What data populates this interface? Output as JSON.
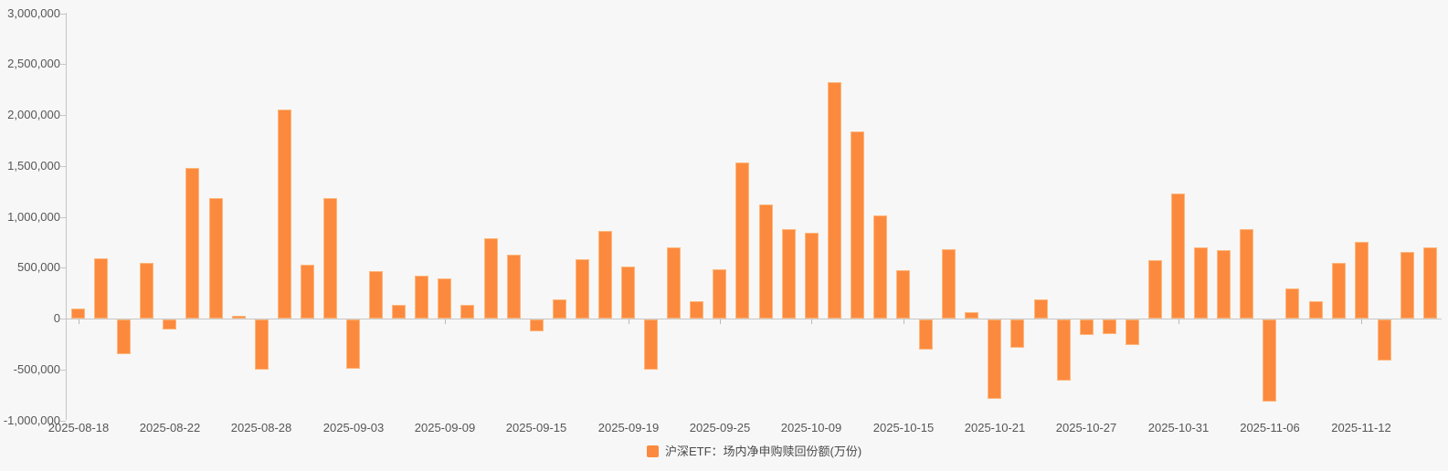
{
  "chart_data": {
    "type": "bar",
    "legend": {
      "label": "沪深ETF：场内净申购赎回份额(万份)",
      "position": "bottom-center",
      "swatch_color": "#fc8a3e"
    },
    "categories": [
      "2025-08-18",
      "2025-08-19",
      "2025-08-20",
      "2025-08-21",
      "2025-08-22",
      "2025-08-25",
      "2025-08-26",
      "2025-08-27",
      "2025-08-28",
      "2025-08-29",
      "2025-09-01",
      "2025-09-02",
      "2025-09-03",
      "2025-09-04",
      "2025-09-05",
      "2025-09-08",
      "2025-09-09",
      "2025-09-10",
      "2025-09-11",
      "2025-09-12",
      "2025-09-15",
      "2025-09-16",
      "2025-09-17",
      "2025-09-18",
      "2025-09-19",
      "2025-09-22",
      "2025-09-23",
      "2025-09-24",
      "2025-09-25",
      "2025-09-26",
      "2025-09-29",
      "2025-09-30",
      "2025-10-09",
      "2025-10-10",
      "2025-10-13",
      "2025-10-14",
      "2025-10-15",
      "2025-10-16",
      "2025-10-17",
      "2025-10-20",
      "2025-10-21",
      "2025-10-22",
      "2025-10-23",
      "2025-10-24",
      "2025-10-27",
      "2025-10-28",
      "2025-10-29",
      "2025-10-30",
      "2025-10-31",
      "2025-11-03",
      "2025-11-04",
      "2025-11-05",
      "2025-11-06",
      "2025-11-07",
      "2025-11-10",
      "2025-11-11",
      "2025-11-12",
      "2025-11-13",
      "2025-11-14",
      "2025-11-17"
    ],
    "series": [
      {
        "name": "沪深ETF：场内净申购赎回份额(万份)",
        "values": [
          98000,
          590000,
          -340000,
          548000,
          -100000,
          1478000,
          1185000,
          25000,
          -490000,
          2057000,
          530000,
          1185000,
          -484000,
          470000,
          134000,
          418000,
          397000,
          132000,
          786000,
          628000,
          -120000,
          185000,
          583000,
          861000,
          514000,
          -493000,
          702000,
          167000,
          487000,
          1531000,
          1124000,
          876000,
          843000,
          2323000,
          1842000,
          1016000,
          472000,
          -299000,
          682000,
          66000,
          -783000,
          -278000,
          188000,
          -598000,
          -150000,
          -140000,
          -250000,
          571000,
          1229000,
          696000,
          673000,
          876000,
          -804000,
          293000,
          173000,
          544000,
          753000,
          -401000,
          652000,
          702000
        ]
      }
    ],
    "x_label_interval": 4,
    "y_ticks": [
      {
        "value": 3000000,
        "label": "3,000,000"
      },
      {
        "value": 2500000,
        "label": "2,500,000"
      },
      {
        "value": 2000000,
        "label": "2,000,000"
      },
      {
        "value": 1500000,
        "label": "1,500,000"
      },
      {
        "value": 1000000,
        "label": "1,000,000"
      },
      {
        "value": 500000,
        "label": "500,000"
      },
      {
        "value": 0,
        "label": "0"
      },
      {
        "value": -500000,
        "label": "-500,000"
      },
      {
        "value": -1000000,
        "label": "-1,000,000"
      }
    ],
    "ylim": [
      -1000000,
      3000000
    ],
    "grid": false,
    "bar_color": "#fc8a3e",
    "background_color": "#f7f7f7",
    "axis_color": "#c6c6c6",
    "label_color": "#565656"
  }
}
